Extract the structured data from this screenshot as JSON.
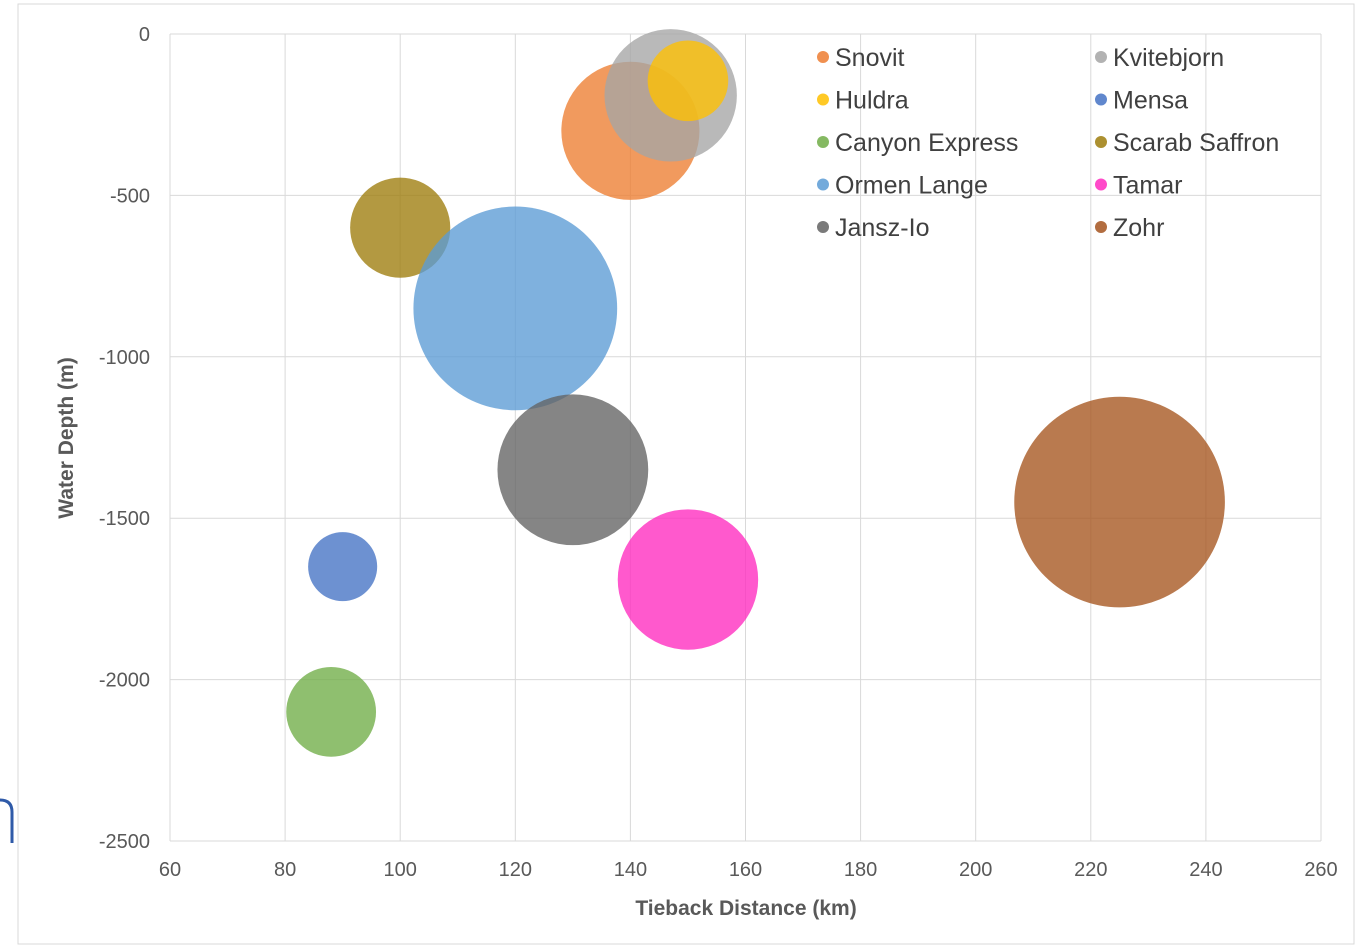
{
  "chart_data": {
    "type": "bubble",
    "title": "",
    "xlabel": "Tieback Distance (km)",
    "ylabel": "Water Depth (m)",
    "xlim": [
      60,
      260
    ],
    "ylim": [
      -2500,
      0
    ],
    "x_ticks": [
      60,
      80,
      100,
      120,
      140,
      160,
      180,
      200,
      220,
      240,
      260
    ],
    "y_ticks": [
      0,
      -500,
      -1000,
      -1500,
      -2000,
      -2500
    ],
    "grid": true,
    "legend_position": "top-right",
    "series": [
      {
        "name": "Snovit",
        "x": 140,
        "y": -300,
        "bubble_radius_km": 12,
        "color": "#ED7D31"
      },
      {
        "name": "Kvitebjorn",
        "x": 147,
        "y": -190,
        "bubble_radius_km": 11.5,
        "color": "#A5A5A5"
      },
      {
        "name": "Huldra",
        "x": 150,
        "y": -145,
        "bubble_radius_km": 7,
        "color": "#FFC000"
      },
      {
        "name": "Mensa",
        "x": 90,
        "y": -1650,
        "bubble_radius_km": 6,
        "color": "#4472C4"
      },
      {
        "name": "Canyon Express",
        "x": 88,
        "y": -2100,
        "bubble_radius_km": 7.8,
        "color": "#70AD47"
      },
      {
        "name": "Scarab Saffron",
        "x": 100,
        "y": -600,
        "bubble_radius_km": 8.7,
        "color": "#9E7C0C"
      },
      {
        "name": "Ormen Lange",
        "x": 120,
        "y": -850,
        "bubble_radius_km": 17.7,
        "color": "#5B9BD5"
      },
      {
        "name": "Tamar",
        "x": 150,
        "y": -1690,
        "bubble_radius_km": 12.2,
        "color": "#FF2ABF"
      },
      {
        "name": "Jansz-Io",
        "x": 130,
        "y": -1350,
        "bubble_radius_km": 13.1,
        "color": "#636363"
      },
      {
        "name": "Zohr",
        "x": 225,
        "y": -1450,
        "bubble_radius_km": 18.3,
        "color": "#A5541E"
      }
    ],
    "legend_order": [
      "Snovit",
      "Kvitebjorn",
      "Huldra",
      "Mensa",
      "Canyon Express",
      "Scarab Saffron",
      "Ormen Lange",
      "Tamar",
      "Jansz-Io",
      "Zohr"
    ],
    "bubble_opacity": 0.78
  }
}
